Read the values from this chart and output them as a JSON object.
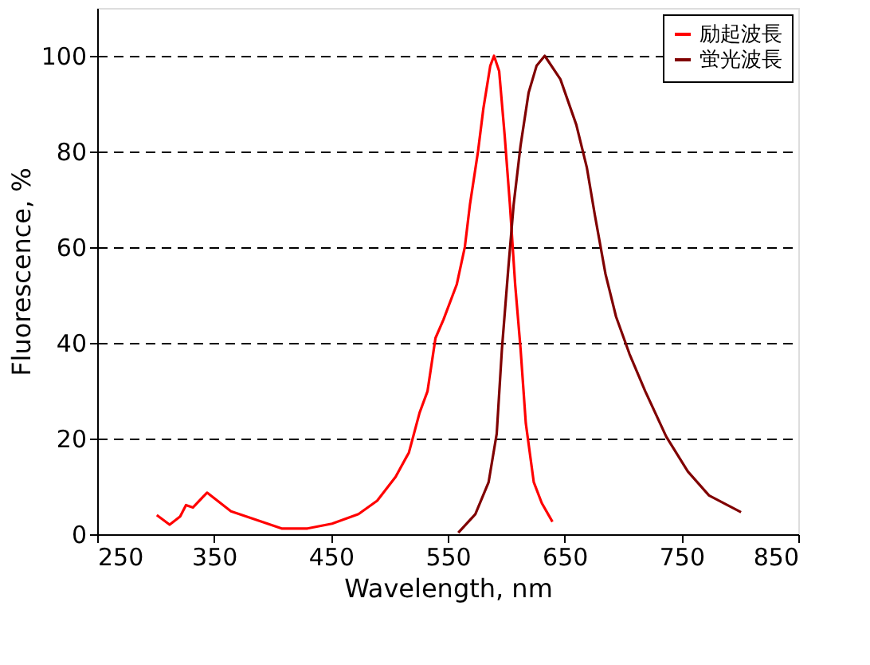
{
  "chart_data": {
    "type": "line",
    "xlabel": "Wavelength, nm",
    "ylabel": "Fluorescence, %",
    "xlim": [
      250,
      850
    ],
    "xticks": [
      250,
      350,
      450,
      550,
      650,
      750,
      850
    ],
    "ylim": [
      0,
      110
    ],
    "yticks": [
      0,
      20,
      40,
      60,
      80,
      100
    ],
    "grid": "y",
    "legend": "top right",
    "line_style": "solid",
    "marker": "none",
    "series": [
      {
        "name": "励起波長",
        "color": "#ff0000",
        "x": [
          301,
          312,
          321,
          326,
          332,
          344,
          364.5,
          382.7,
          407.8,
          430,
          451,
          473.6,
          489.6,
          505.4,
          516.8,
          525.9,
          532.7,
          539.5,
          546.4,
          557.7,
          564.6,
          569,
          575.9,
          580.5,
          586.4,
          589.6,
          594,
          598.7,
          603.2,
          607.7,
          612.3,
          616.8,
          623.6,
          630.5,
          639.6
        ],
        "values": [
          4.0,
          2.0,
          3.7,
          6.1,
          5.6,
          8.7,
          4.8,
          3.3,
          1.2,
          1.2,
          2.2,
          4.2,
          7.0,
          12.0,
          17.1,
          25.4,
          29.9,
          41.0,
          44.9,
          52.2,
          60.0,
          68.9,
          80.0,
          89.0,
          97.9,
          100,
          96.8,
          83.4,
          68.9,
          52.2,
          38.8,
          23.2,
          10.9,
          6.5,
          2.6
        ]
      },
      {
        "name": "蛍光波長",
        "color": "#800000",
        "x": [
          559,
          573.6,
          585,
          591.9,
          596.4,
          601.8,
          606.4,
          612.3,
          619.2,
          626,
          633,
          646.4,
          660,
          669,
          675.9,
          685,
          694,
          705.5,
          719,
          737,
          755.5,
          773.6,
          801
        ],
        "values": [
          0.3,
          4.2,
          10.9,
          21.0,
          38.8,
          55.5,
          68.9,
          81.2,
          92.3,
          97.9,
          100,
          95.1,
          85.6,
          76.7,
          66.7,
          54.4,
          45.5,
          37.7,
          29.9,
          20.4,
          13.1,
          8.1,
          4.6
        ]
      }
    ]
  }
}
